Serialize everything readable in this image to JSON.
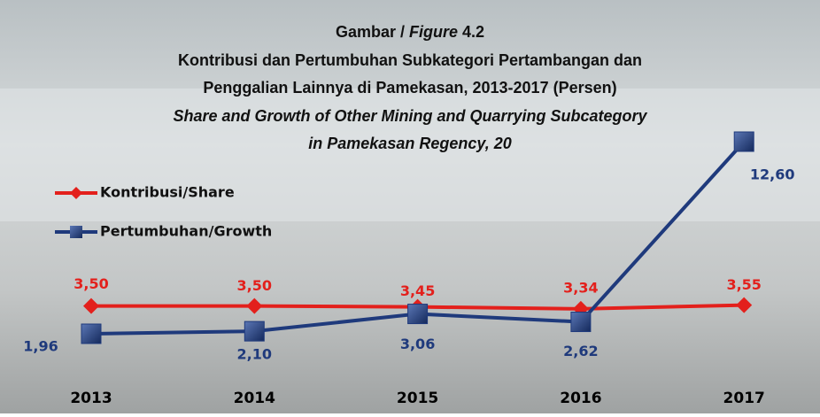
{
  "chart_data": {
    "type": "line",
    "title_lines": [
      [
        "Gambar /",
        "Figure",
        "4.2"
      ],
      "Kontribusi dan Pertumbuhan Subkategori Pertambangan dan",
      "Penggalian Lainnya di Pamekasan, 2013-2017 (Persen)",
      "Share and Growth of Other Mining and Quarrying Subcategory",
      "in Pamekasan Regency, 20"
    ],
    "categories": [
      "2013",
      "2014",
      "2015",
      "2016",
      "2017"
    ],
    "series": [
      {
        "name": "Kontribusi/Share",
        "color": "#e3201c",
        "marker": "diamond",
        "values": [
          3.5,
          3.5,
          3.45,
          3.34,
          3.55
        ],
        "value_labels": [
          "3,50",
          "3,50",
          "3,45",
          "3,34",
          "3,55"
        ]
      },
      {
        "name": "Pertumbuhan/Growth",
        "color": "#1f3a7c",
        "marker": "square",
        "values": [
          1.96,
          2.1,
          3.06,
          2.62,
          12.6
        ],
        "value_labels": [
          "1,96",
          "2,10",
          "3,06",
          "2,62",
          "12,60"
        ]
      }
    ],
    "legend": "left"
  }
}
